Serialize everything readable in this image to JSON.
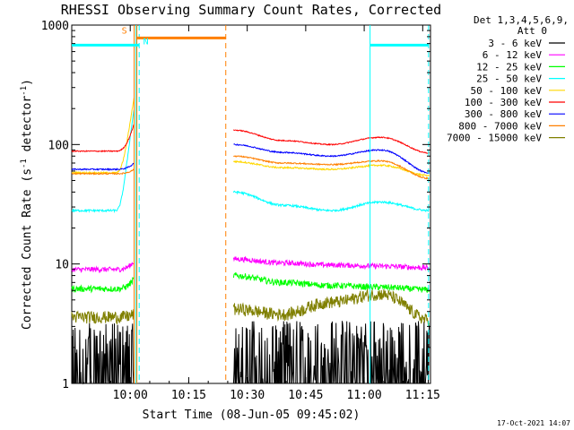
{
  "chart_data": {
    "type": "line",
    "title": "RHESSI Observing Summary Count Rates, Corrected",
    "xlabel": "Start Time (08-Jun-05 09:45:02)",
    "ylabel_main": "Corrected Count Rate (s",
    "ylabel_sup1": "-1",
    "ylabel_mid": " detector",
    "ylabel_sup2": "-1",
    "ylabel_end": ")",
    "yscale": "log",
    "ylim": [
      1,
      1000
    ],
    "xlim_min": [
      0,
      92
    ],
    "x_unit": "minutes since 09:45:02",
    "x_ticks": [
      {
        "min": 15,
        "label": "10:00"
      },
      {
        "min": 30,
        "label": "10:15"
      },
      {
        "min": 45,
        "label": "10:30"
      },
      {
        "min": 60,
        "label": "10:45"
      },
      {
        "min": 75,
        "label": "11:00"
      },
      {
        "min": 90,
        "label": "11:15"
      }
    ],
    "y_ticks": [
      {
        "v": 1,
        "label": "1"
      },
      {
        "v": 10,
        "label": "10"
      },
      {
        "v": 100,
        "label": "100"
      },
      {
        "v": 1000,
        "label": "1000"
      }
    ],
    "legend": {
      "header1": "Det 1,3,4,5,6,9,",
      "header2": "Att 0",
      "placement": "right"
    },
    "timestamp": "17-Oct-2021 14:07",
    "gap_min": [
      16,
      40
    ],
    "series": [
      {
        "name": "3 - 6 keV",
        "color": "#000000",
        "pre": 1.5,
        "flare": 1.6,
        "post": [
          1.8,
          2.0,
          2.2,
          2.0,
          1.8
        ],
        "noise": 0.5,
        "clip": true
      },
      {
        "name": "6 - 12 keV",
        "color": "#ff00ff",
        "pre": 9.0,
        "flare": 10.5,
        "post": [
          11.0,
          10.2,
          9.8,
          9.6,
          9.3
        ],
        "noise": 0.05
      },
      {
        "name": "12 - 25 keV",
        "color": "#00ff00",
        "pre": 6.2,
        "flare": 7.5,
        "post": [
          8.0,
          7.0,
          6.6,
          6.4,
          6.1
        ],
        "noise": 0.06
      },
      {
        "name": "25 - 50 keV",
        "color": "#00ffff",
        "pre": 28,
        "flare": 200,
        "post": [
          40,
          31,
          28,
          33,
          28
        ],
        "noise": 0.02
      },
      {
        "name": "50 - 100 keV",
        "color": "#ffd700",
        "pre": 58,
        "flare": 250,
        "post": [
          72,
          64,
          62,
          67,
          55
        ],
        "noise": 0.015
      },
      {
        "name": "100 - 300 keV",
        "color": "#ff0000",
        "pre": 88,
        "flare": 150,
        "post": [
          132,
          108,
          100,
          115,
          85
        ],
        "noise": 0.01
      },
      {
        "name": "300 - 800 keV",
        "color": "#0000ff",
        "pre": 62,
        "flare": 70,
        "post": [
          100,
          86,
          80,
          90,
          58
        ],
        "noise": 0.012
      },
      {
        "name": "800 - 7000 keV",
        "color": "#ff7f00",
        "pre": 57,
        "flare": 62,
        "post": [
          80,
          70,
          68,
          73,
          52
        ],
        "noise": 0.012
      },
      {
        "name": "7000 - 15000 keV",
        "color": "#808000",
        "pre": 3.6,
        "flare": 3.8,
        "post": [
          4.2,
          3.8,
          4.8,
          5.6,
          3.4
        ],
        "noise": 0.12
      }
    ],
    "annotations": [
      {
        "type": "vline",
        "min": 16.5,
        "color": "#00ffff",
        "style": "solid"
      },
      {
        "type": "vline",
        "min": 17.3,
        "color": "#00ffff",
        "style": "dashed"
      },
      {
        "type": "vline",
        "min": 16.0,
        "color": "#ff7f00",
        "style": "solid"
      },
      {
        "type": "vline",
        "min": 16.7,
        "color": "#ff7f00",
        "style": "solid"
      },
      {
        "type": "vline",
        "min": 39.5,
        "color": "#ff7f00",
        "style": "dashed"
      },
      {
        "type": "vline",
        "min": 76.5,
        "color": "#00ffff",
        "style": "solid"
      },
      {
        "type": "vline",
        "min": 91.5,
        "color": "#00ffff",
        "style": "dashed"
      },
      {
        "type": "bar",
        "from": 0,
        "to": 17.3,
        "color": "#00ffff",
        "v": 680
      },
      {
        "type": "bar",
        "from": 76.5,
        "to": 91.5,
        "color": "#00ffff",
        "v": 680
      },
      {
        "type": "bar",
        "from": 16.5,
        "to": 39.5,
        "color": "#ff7f00",
        "v": 780
      },
      {
        "type": "label",
        "text": "S",
        "color": "#ff7f00",
        "min": 13.5,
        "v": 850
      },
      {
        "type": "label",
        "text": "N",
        "color": "#00ffff",
        "min": 19.0,
        "v": 690
      }
    ]
  }
}
